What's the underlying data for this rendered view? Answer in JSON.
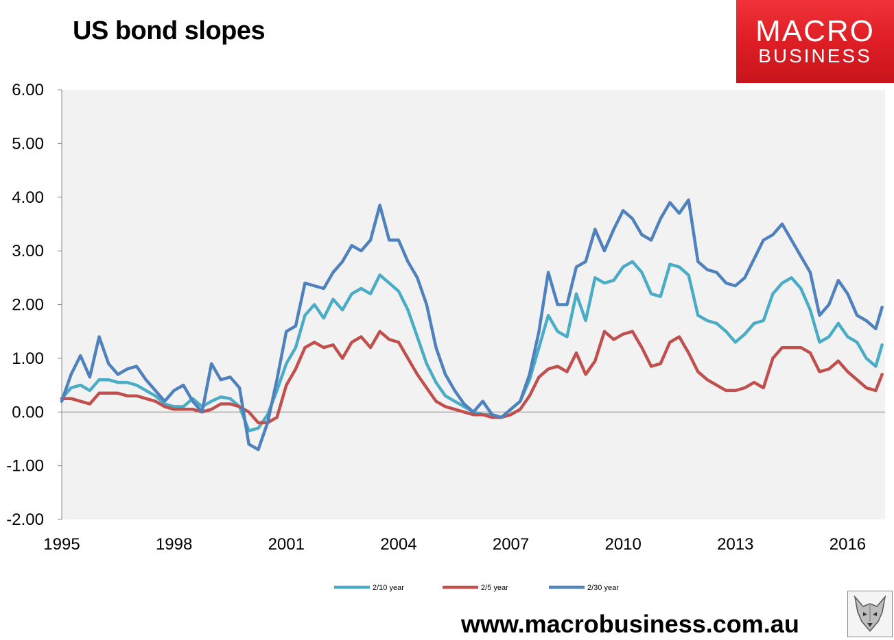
{
  "title": "US bond slopes",
  "logo": {
    "line1": "MACRO",
    "line2": "BUSINESS"
  },
  "website": "www.macrobusiness.com.au",
  "colors": {
    "s10": "#4bacc6",
    "s5": "#c0504d",
    "s30": "#4f81bd",
    "plot_bg": "#f2f2f2"
  },
  "chart_data": {
    "type": "line",
    "title": "US bond slopes",
    "xlabel": "",
    "ylabel": "",
    "ylim": [
      -2,
      6
    ],
    "yticks": [
      "6.00",
      "5.00",
      "4.00",
      "3.00",
      "2.00",
      "1.00",
      "0.00",
      "-1.00",
      "-2.00"
    ],
    "xlim": [
      1995,
      2017
    ],
    "xticks": [
      "1995",
      "1998",
      "2001",
      "2004",
      "2007",
      "2010",
      "2013",
      "2016"
    ],
    "legend_position": "bottom",
    "grid": false,
    "series": [
      {
        "name": "2/10 year",
        "x": [
          1995.0,
          1995.25,
          1995.5,
          1995.75,
          1996.0,
          1996.25,
          1996.5,
          1996.75,
          1997.0,
          1997.25,
          1997.5,
          1997.75,
          1998.0,
          1998.25,
          1998.5,
          1998.75,
          1999.0,
          1999.25,
          1999.5,
          1999.75,
          2000.0,
          2000.25,
          2000.5,
          2000.75,
          2001.0,
          2001.25,
          2001.5,
          2001.75,
          2002.0,
          2002.25,
          2002.5,
          2002.75,
          2003.0,
          2003.25,
          2003.5,
          2003.75,
          2004.0,
          2004.25,
          2004.5,
          2004.75,
          2005.0,
          2005.25,
          2005.5,
          2005.75,
          2006.0,
          2006.25,
          2006.5,
          2006.75,
          2007.0,
          2007.25,
          2007.5,
          2007.75,
          2008.0,
          2008.25,
          2008.5,
          2008.75,
          2009.0,
          2009.25,
          2009.5,
          2009.75,
          2010.0,
          2010.25,
          2010.5,
          2010.75,
          2011.0,
          2011.25,
          2011.5,
          2011.75,
          2012.0,
          2012.25,
          2012.5,
          2012.75,
          2013.0,
          2013.25,
          2013.5,
          2013.75,
          2014.0,
          2014.25,
          2014.5,
          2014.75,
          2015.0,
          2015.25,
          2015.5,
          2015.75,
          2016.0,
          2016.25,
          2016.5,
          2016.75,
          2016.92
        ],
        "values": [
          0.25,
          0.45,
          0.5,
          0.4,
          0.6,
          0.6,
          0.55,
          0.55,
          0.5,
          0.4,
          0.3,
          0.15,
          0.1,
          0.1,
          0.25,
          0.1,
          0.2,
          0.28,
          0.25,
          0.1,
          -0.35,
          -0.3,
          -0.05,
          0.4,
          0.9,
          1.2,
          1.8,
          2.0,
          1.75,
          2.1,
          1.9,
          2.2,
          2.3,
          2.2,
          2.55,
          2.4,
          2.25,
          1.9,
          1.4,
          0.9,
          0.55,
          0.3,
          0.2,
          0.1,
          0.0,
          -0.05,
          -0.05,
          -0.1,
          0.05,
          0.2,
          0.6,
          1.2,
          1.8,
          1.5,
          1.4,
          2.2,
          1.7,
          2.5,
          2.4,
          2.45,
          2.7,
          2.8,
          2.6,
          2.2,
          2.15,
          2.75,
          2.7,
          2.55,
          1.8,
          1.7,
          1.65,
          1.5,
          1.3,
          1.45,
          1.65,
          1.7,
          2.2,
          2.4,
          2.5,
          2.3,
          1.9,
          1.3,
          1.4,
          1.65,
          1.4,
          1.3,
          1.0,
          0.85,
          1.25
        ]
      },
      {
        "name": "2/5 year",
        "x": [
          1995.0,
          1995.25,
          1995.5,
          1995.75,
          1996.0,
          1996.25,
          1996.5,
          1996.75,
          1997.0,
          1997.25,
          1997.5,
          1997.75,
          1998.0,
          1998.25,
          1998.5,
          1998.75,
          1999.0,
          1999.25,
          1999.5,
          1999.75,
          2000.0,
          2000.25,
          2000.5,
          2000.75,
          2001.0,
          2001.25,
          2001.5,
          2001.75,
          2002.0,
          2002.25,
          2002.5,
          2002.75,
          2003.0,
          2003.25,
          2003.5,
          2003.75,
          2004.0,
          2004.25,
          2004.5,
          2004.75,
          2005.0,
          2005.25,
          2005.5,
          2005.75,
          2006.0,
          2006.25,
          2006.5,
          2006.75,
          2007.0,
          2007.25,
          2007.5,
          2007.75,
          2008.0,
          2008.25,
          2008.5,
          2008.75,
          2009.0,
          2009.25,
          2009.5,
          2009.75,
          2010.0,
          2010.25,
          2010.5,
          2010.75,
          2011.0,
          2011.25,
          2011.5,
          2011.75,
          2012.0,
          2012.25,
          2012.5,
          2012.75,
          2013.0,
          2013.25,
          2013.5,
          2013.75,
          2014.0,
          2014.25,
          2014.5,
          2014.75,
          2015.0,
          2015.25,
          2015.5,
          2015.75,
          2016.0,
          2016.25,
          2016.5,
          2016.75,
          2016.92
        ],
        "values": [
          0.25,
          0.25,
          0.2,
          0.15,
          0.35,
          0.35,
          0.35,
          0.3,
          0.3,
          0.25,
          0.2,
          0.1,
          0.05,
          0.05,
          0.05,
          0.0,
          0.05,
          0.15,
          0.15,
          0.1,
          0.0,
          -0.2,
          -0.2,
          -0.1,
          0.5,
          0.8,
          1.2,
          1.3,
          1.2,
          1.25,
          1.0,
          1.3,
          1.4,
          1.2,
          1.5,
          1.35,
          1.3,
          1.0,
          0.7,
          0.45,
          0.2,
          0.1,
          0.05,
          0.0,
          -0.05,
          -0.05,
          -0.1,
          -0.1,
          -0.05,
          0.05,
          0.3,
          0.65,
          0.8,
          0.85,
          0.75,
          1.1,
          0.7,
          0.95,
          1.5,
          1.35,
          1.45,
          1.5,
          1.2,
          0.85,
          0.9,
          1.3,
          1.4,
          1.1,
          0.75,
          0.6,
          0.5,
          0.4,
          0.4,
          0.45,
          0.55,
          0.45,
          1.0,
          1.2,
          1.2,
          1.2,
          1.1,
          0.75,
          0.8,
          0.95,
          0.75,
          0.6,
          0.45,
          0.4,
          0.7
        ]
      },
      {
        "name": "2/30 year",
        "x": [
          1995.0,
          1995.25,
          1995.5,
          1995.75,
          1996.0,
          1996.25,
          1996.5,
          1996.75,
          1997.0,
          1997.25,
          1997.5,
          1997.75,
          1998.0,
          1998.25,
          1998.5,
          1998.75,
          1999.0,
          1999.25,
          1999.5,
          1999.75,
          2000.0,
          2000.25,
          2000.5,
          2000.75,
          2001.0,
          2001.25,
          2001.5,
          2001.75,
          2002.0,
          2002.25,
          2002.5,
          2002.75,
          2003.0,
          2003.25,
          2003.5,
          2003.75,
          2004.0,
          2004.25,
          2004.5,
          2004.75,
          2005.0,
          2005.25,
          2005.5,
          2005.75,
          2006.0,
          2006.25,
          2006.5,
          2006.75,
          2007.0,
          2007.25,
          2007.5,
          2007.75,
          2008.0,
          2008.25,
          2008.5,
          2008.75,
          2009.0,
          2009.25,
          2009.5,
          2009.75,
          2010.0,
          2010.25,
          2010.5,
          2010.75,
          2011.0,
          2011.25,
          2011.5,
          2011.75,
          2012.0,
          2012.25,
          2012.5,
          2012.75,
          2013.0,
          2013.25,
          2013.5,
          2013.75,
          2014.0,
          2014.25,
          2014.5,
          2014.75,
          2015.0,
          2015.25,
          2015.5,
          2015.75,
          2016.0,
          2016.25,
          2016.5,
          2016.75,
          2016.92
        ],
        "values": [
          0.2,
          0.7,
          1.05,
          0.65,
          1.4,
          0.9,
          0.7,
          0.8,
          0.85,
          0.6,
          0.4,
          0.2,
          0.4,
          0.5,
          0.2,
          0.0,
          0.9,
          0.6,
          0.65,
          0.45,
          -0.6,
          -0.7,
          -0.2,
          0.6,
          1.5,
          1.6,
          2.4,
          2.35,
          2.3,
          2.6,
          2.8,
          3.1,
          3.0,
          3.2,
          3.85,
          3.2,
          3.2,
          2.8,
          2.5,
          2.0,
          1.2,
          0.7,
          0.4,
          0.15,
          0.0,
          0.2,
          -0.05,
          -0.1,
          0.05,
          0.2,
          0.7,
          1.5,
          2.6,
          2.0,
          2.0,
          2.7,
          2.8,
          3.4,
          3.0,
          3.4,
          3.75,
          3.6,
          3.3,
          3.2,
          3.6,
          3.9,
          3.7,
          3.95,
          2.8,
          2.65,
          2.6,
          2.4,
          2.35,
          2.5,
          2.85,
          3.2,
          3.3,
          3.5,
          3.2,
          2.9,
          2.6,
          1.8,
          2.0,
          2.45,
          2.2,
          1.8,
          1.7,
          1.55,
          1.95
        ]
      }
    ]
  }
}
